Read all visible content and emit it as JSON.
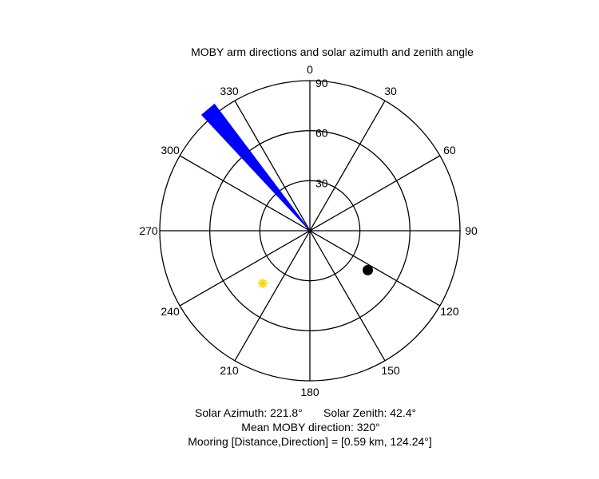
{
  "chart_data": {
    "type": "polar",
    "title": "MOBY arm directions and solar azimuth and zenith angle",
    "angle_ticks": [
      "0",
      "30",
      "60",
      "90",
      "120",
      "150",
      "180",
      "210",
      "240",
      "270",
      "300",
      "330"
    ],
    "radial_ticks": [
      "30",
      "60",
      "90"
    ],
    "radial_max": 90,
    "grid": true,
    "arm_wedge": {
      "color": "#0000ff",
      "azimuth_start": 317,
      "azimuth_end": 323,
      "radius_start": 0,
      "radius_end": 95
    },
    "sun": {
      "azimuth": 221.8,
      "zenith": 42.4,
      "color": "#ffd700",
      "icon": "sun-icon"
    },
    "mooring": {
      "distance_km": 0.59,
      "direction": 124.24,
      "plot_radius": 42,
      "color": "#000000"
    }
  },
  "footer": {
    "solar_azimuth": "Solar Azimuth: 221.8°",
    "solar_zenith": "Solar Zenith: 42.4°",
    "mean_direction": "Mean MOBY direction: 320°",
    "mooring": "Mooring [Distance,Direction] = [0.59 km, 124.24°]"
  }
}
